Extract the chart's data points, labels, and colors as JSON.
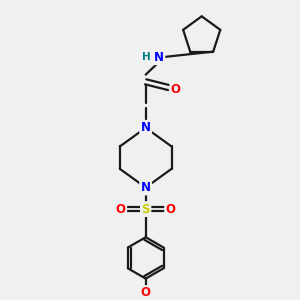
{
  "bg_color": "#f0f0f0",
  "bond_color": "#1a1a1a",
  "N_color": "#0000ff",
  "O_color": "#ff0000",
  "S_color": "#cccc00",
  "H_color": "#008080",
  "figsize": [
    3.0,
    3.0
  ],
  "dpi": 100,
  "xlim": [
    0,
    10
  ],
  "ylim": [
    0,
    10
  ]
}
